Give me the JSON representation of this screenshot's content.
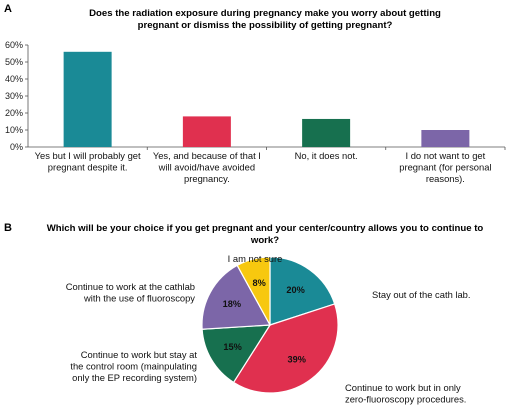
{
  "panels": {
    "a_letter": "A",
    "b_letter": "B"
  },
  "chart_data": [
    {
      "type": "bar",
      "title_lines": [
        "Does the radiation exposure during pregnancy make you worry about getting",
        "pregnant or dismiss the possibility of getting pregnant?"
      ],
      "categories": [
        [
          "Yes but I will probably get",
          "pregnant despite it."
        ],
        [
          "Yes, and because of that I",
          "will avoid/have avoided",
          "pregnancy."
        ],
        [
          "No, it does not."
        ],
        [
          "I do not want to get",
          "pregnant (for personal",
          "reasons)."
        ]
      ],
      "values": [
        56,
        18,
        16.5,
        10
      ],
      "colors": [
        "#1a8a96",
        "#e0304f",
        "#17704f",
        "#7c66a8"
      ],
      "ylim": [
        0,
        60
      ],
      "yticks": [
        "0%",
        "10%",
        "20%",
        "30%",
        "40%",
        "50%",
        "60%"
      ],
      "xlabel": "",
      "ylabel": "",
      "grid": false
    },
    {
      "type": "pie",
      "title_lines": [
        "Which will be your choice if you get pregnant and your center/country allows you to continue to",
        "work?"
      ],
      "slices": [
        {
          "pct": "20%",
          "value": 20,
          "color": "#1a8a96",
          "label_lines": [
            "Stay out of the cath lab."
          ]
        },
        {
          "pct": "39%",
          "value": 39,
          "color": "#e0304f",
          "label_lines": [
            "Continue to work but in only",
            "zero-fluoroscopy procedures."
          ]
        },
        {
          "pct": "15%",
          "value": 15,
          "color": "#17704f",
          "label_lines": [
            "Continue to work but stay at",
            "the control room (mainpulating",
            "only the EP recording system)"
          ]
        },
        {
          "pct": "18%",
          "value": 18,
          "color": "#7c66a8",
          "label_lines": [
            "Continue to work at the cathlab",
            "with the use of fluoroscopy"
          ]
        },
        {
          "pct": "8%",
          "value": 8,
          "color": "#f7c80f",
          "label_lines": [
            "I am not sure"
          ]
        }
      ]
    }
  ]
}
